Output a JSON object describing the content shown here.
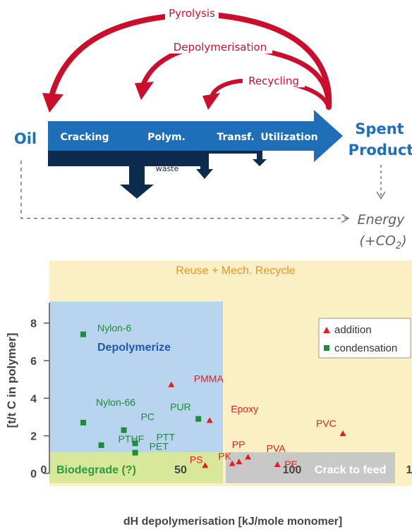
{
  "flow": {
    "start": "Oil",
    "stages": [
      "Cracking",
      "Polym.",
      "Transf.",
      "Utilization"
    ],
    "end_line1": "Spent",
    "end_line2": "Product",
    "waste": "waste",
    "loops": [
      "Pyrolysis",
      "Depolymerisation",
      "Recycling"
    ],
    "energy_line1": "Energy",
    "energy_line2_pre": "(+CO",
    "energy_line2_sub": "2",
    "energy_line2_post": ")"
  },
  "colors": {
    "flow_blue": "#1f6fb8",
    "dark_navy": "#0d2a4f",
    "loop_red": "#c8102e",
    "addition": "#e02020",
    "condensation": "#1e8c3a",
    "reuse_zone": "#fbf0c4",
    "depoly_zone": "#b8d4ee",
    "bio_zone": "#d8e89a",
    "crack_zone": "#c8c8c8"
  },
  "chart_data": {
    "type": "scatter",
    "xlabel": "dH depolymerisation [kJ/mole monomer]",
    "ylabel": "[t/t C in polymer]",
    "xlim": [
      0,
      150
    ],
    "ylim": [
      0,
      9
    ],
    "xticks": [
      "0",
      "50",
      "100",
      "1"
    ],
    "yticks": [
      "0",
      "2",
      "4",
      "6",
      "8"
    ],
    "zones": {
      "reuse": "Reuse + Mech. Recycle",
      "depolymerize": "Depolymerize",
      "biodegrade": "Biodegrade (?)",
      "crack": "Crack to feed"
    },
    "legend": {
      "addition": "addition",
      "condensation": "condensation"
    },
    "series": [
      {
        "name": "addition",
        "points": [
          {
            "label": "PMMA",
            "x": 54,
            "y": 4.7
          },
          {
            "label": "Epoxy",
            "x": 71,
            "y": 2.8
          },
          {
            "label": "PVC",
            "x": 130,
            "y": 2.1
          },
          {
            "label": "PS",
            "x": 69,
            "y": 0.4
          },
          {
            "label": "PK",
            "x": 81,
            "y": 0.5
          },
          {
            "label": "PP",
            "x": 84,
            "y": 0.6
          },
          {
            "label": "PVA",
            "x": 88,
            "y": 0.85
          },
          {
            "label": "PE",
            "x": 101,
            "y": 0.45
          }
        ]
      },
      {
        "name": "condensation",
        "points": [
          {
            "label": "Nylon-6",
            "x": 15,
            "y": 7.4
          },
          {
            "label": "Nylon-66",
            "x": 15,
            "y": 2.7
          },
          {
            "label": "PC",
            "x": 33,
            "y": 2.3
          },
          {
            "label": "PUR",
            "x": 66,
            "y": 2.9
          },
          {
            "label": "PTT",
            "x": 38,
            "y": 1.6
          },
          {
            "label": "PTHF",
            "x": 23,
            "y": 1.5
          },
          {
            "label": "PET",
            "x": 38,
            "y": 1.1
          }
        ]
      }
    ]
  }
}
